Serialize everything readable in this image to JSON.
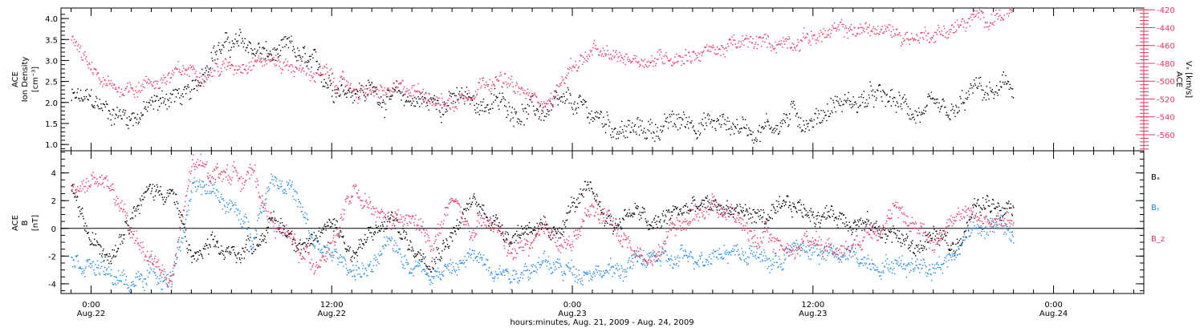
{
  "chart_data": [
    {
      "type": "scatter",
      "panel": "top",
      "left_axis_label": [
        "ACE",
        "Ion Density",
        "[cm⁻³]"
      ],
      "right_axis_label": [
        "ACE",
        "Vₓ [km/s]"
      ],
      "left_ylim": [
        0.85,
        4.25
      ],
      "left_ticks": [
        "1.0",
        "1.5",
        "2.0",
        "2.5",
        "3.0",
        "3.5",
        "4.0"
      ],
      "left_tick_values": [
        1.0,
        1.5,
        2.0,
        2.5,
        3.0,
        3.5,
        4.0
      ],
      "right_ylim": [
        -578,
        -418
      ],
      "right_ticks": [
        "-420",
        "-440",
        "-460",
        "-480",
        "-500",
        "-520",
        "-540",
        "-560"
      ],
      "right_tick_values": [
        -420,
        -440,
        -460,
        -480,
        -500,
        -520,
        -540,
        -560
      ],
      "series": [
        {
          "color": "#000000",
          "axis": "left",
          "x_hours": [
            -1,
            0,
            1,
            2,
            3,
            4,
            5,
            6,
            7,
            8,
            9,
            10,
            11,
            12,
            13,
            14,
            15,
            16,
            17,
            18,
            19,
            20,
            21,
            22,
            23,
            24,
            25,
            26,
            27,
            28,
            29,
            30,
            31,
            32,
            33,
            34,
            35,
            36,
            37,
            38,
            39,
            40,
            41,
            42,
            43,
            44,
            45,
            46
          ],
          "values": [
            2.1,
            2.0,
            1.8,
            1.7,
            1.9,
            2.2,
            2.1,
            3.3,
            3.4,
            3.3,
            3.1,
            3.2,
            2.8,
            2.5,
            2.4,
            2.3,
            2.1,
            2.1,
            2.0,
            2.1,
            2.0,
            2.0,
            1.9,
            1.8,
            1.8,
            1.9,
            1.7,
            1.5,
            1.3,
            1.4,
            1.5,
            1.6,
            1.5,
            1.5,
            1.4,
            1.5,
            1.7,
            1.6,
            2.0,
            2.0,
            2.1,
            2.0,
            1.8,
            1.7,
            1.6,
            2.3,
            2.2,
            2.4
          ]
        },
        {
          "color": "#e8345f",
          "axis": "right",
          "x_hours": [
            -1,
            0,
            1,
            2,
            3,
            4,
            5,
            6,
            7,
            8,
            9,
            10,
            11,
            12,
            13,
            14,
            15,
            16,
            17,
            18,
            19,
            20,
            21,
            22,
            23,
            24,
            25,
            26,
            27,
            28,
            29,
            30,
            31,
            32,
            33,
            34,
            35,
            36,
            37,
            38,
            39,
            40,
            41,
            42,
            43,
            44,
            45,
            46
          ],
          "values": [
            -452,
            -492,
            -510,
            -505,
            -500,
            -495,
            -487,
            -485,
            -484,
            -472,
            -476,
            -482,
            -490,
            -497,
            -508,
            -514,
            -513,
            -510,
            -514,
            -527,
            -505,
            -492,
            -508,
            -520,
            -518,
            -480,
            -468,
            -476,
            -472,
            -475,
            -470,
            -468,
            -465,
            -460,
            -458,
            -457,
            -452,
            -448,
            -446,
            -442,
            -442,
            -445,
            -450,
            -445,
            -440,
            -432,
            -425,
            -422
          ]
        }
      ]
    },
    {
      "type": "scatter",
      "panel": "bottom",
      "left_axis_label": [
        "ACE",
        "B",
        "[nT]"
      ],
      "ylim": [
        -4.7,
        5.6
      ],
      "ticks": [
        "4",
        "2",
        "0",
        "-2",
        "-4"
      ],
      "tick_values": [
        4,
        2,
        0,
        -2,
        -4
      ],
      "legend": [
        "Bₓ",
        "Bᵧ",
        "B_z"
      ],
      "series": [
        {
          "color": "#000000",
          "x_hours": [
            -1,
            0,
            1,
            2,
            3,
            4,
            5,
            6,
            7,
            8,
            9,
            10,
            11,
            12,
            13,
            14,
            15,
            16,
            17,
            18,
            19,
            20,
            21,
            22,
            23,
            24,
            25,
            26,
            27,
            28,
            29,
            30,
            31,
            32,
            33,
            34,
            35,
            36,
            37,
            38,
            39,
            40,
            41,
            42,
            43,
            44,
            45,
            46
          ],
          "values": [
            2.8,
            -1.2,
            -1.5,
            1.5,
            2.8,
            2.8,
            -2.2,
            -1.5,
            -2.0,
            -1.0,
            0.5,
            -0.3,
            -1.5,
            1.0,
            -1.8,
            -0.5,
            0.8,
            -1.5,
            -1.8,
            -0.2,
            1.8,
            0.8,
            -0.5,
            0.5,
            -1.0,
            1.8,
            2.5,
            0.2,
            1.5,
            0.0,
            1.2,
            1.5,
            1.5,
            1.5,
            1.0,
            0.8,
            1.5,
            1.2,
            1.0,
            0.8,
            0.0,
            -0.3,
            -1.5,
            -0.5,
            -1.5,
            1.5,
            1.8,
            2.2
          ]
        },
        {
          "color": "#1e88e5",
          "x_hours": [
            -1,
            0,
            1,
            2,
            3,
            4,
            5,
            6,
            7,
            8,
            9,
            10,
            11,
            12,
            13,
            14,
            15,
            16,
            17,
            18,
            19,
            20,
            21,
            22,
            23,
            24,
            25,
            26,
            27,
            28,
            29,
            30,
            31,
            32,
            33,
            34,
            35,
            36,
            37,
            38,
            39,
            40,
            41,
            42,
            43,
            44,
            45,
            46
          ],
          "values": [
            -2.0,
            -2.5,
            -3.5,
            -4.0,
            -3.0,
            -3.5,
            2.5,
            3.0,
            1.5,
            -0.5,
            4.0,
            3.0,
            -1.0,
            -2.0,
            -2.8,
            -3.0,
            -1.0,
            -2.5,
            -3.0,
            -3.0,
            -2.0,
            -2.5,
            -3.2,
            -2.5,
            -2.8,
            -3.0,
            -2.8,
            -3.2,
            -2.5,
            -2.0,
            -2.5,
            -2.0,
            -1.5,
            -1.5,
            -1.8,
            -2.5,
            -1.5,
            -1.5,
            -2.0,
            -2.0,
            -2.3,
            -2.5,
            -2.5,
            -2.5,
            -2.0,
            0.5,
            0.2,
            -0.5
          ]
        },
        {
          "color": "#e8345f",
          "x_hours": [
            -1,
            0,
            1,
            2,
            3,
            4,
            5,
            6,
            7,
            8,
            9,
            10,
            11,
            12,
            13,
            14,
            15,
            16,
            17,
            18,
            19,
            20,
            21,
            22,
            23,
            24,
            25,
            26,
            27,
            28,
            29,
            30,
            31,
            32,
            33,
            34,
            35,
            36,
            37,
            38,
            39,
            40,
            41,
            42,
            43,
            44,
            45,
            46
          ],
          "values": [
            2.5,
            3.5,
            3.0,
            -0.5,
            -2.0,
            -4.0,
            4.5,
            4.2,
            4.0,
            4.0,
            0.5,
            -1.0,
            -2.5,
            -1.0,
            2.5,
            1.0,
            0.5,
            0.5,
            -1.0,
            2.0,
            -0.5,
            0.5,
            -1.8,
            -1.0,
            -0.5,
            -1.0,
            1.5,
            0.5,
            -1.5,
            -2.5,
            0.5,
            1.0,
            2.0,
            1.0,
            -0.5,
            -1.0,
            -1.5,
            -0.5,
            -1.5,
            -1.0,
            0.5,
            1.0,
            0.5,
            -1.0,
            1.0,
            1.0,
            0.5,
            0.0
          ]
        }
      ]
    }
  ],
  "x_axis": {
    "tick_values": [
      0,
      12,
      24,
      36,
      48
    ],
    "tick_labels": [
      {
        "time": "0:00",
        "date": "Aug.22"
      },
      {
        "time": "12:00",
        "date": "Aug.22"
      },
      {
        "time": "0:00",
        "date": "Aug.23"
      },
      {
        "time": "12:00",
        "date": "Aug.23"
      },
      {
        "time": "0:00",
        "date": "Aug.24"
      }
    ],
    "title": "hours:minutes, Aug. 21, 2009 - Aug. 24, 2009",
    "xlim_hours": [
      -1.5,
      52.5
    ]
  }
}
